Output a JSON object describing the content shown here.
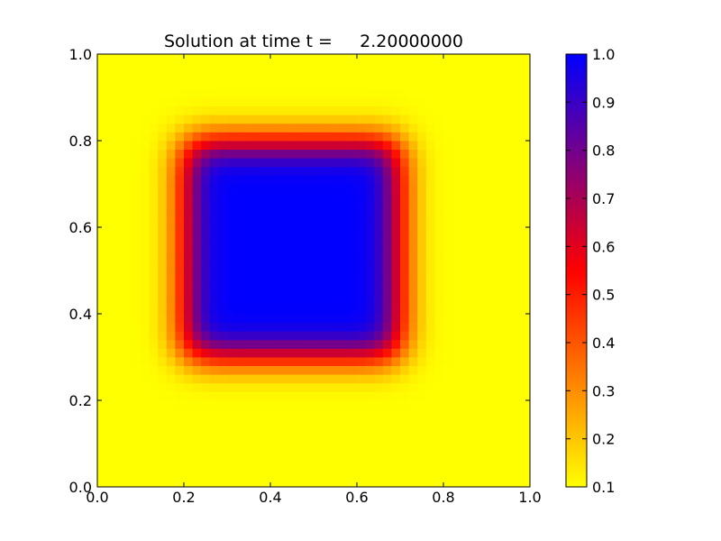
{
  "chart_data": {
    "type": "heatmap",
    "title": "Solution at time t =     2.20000000",
    "xlabel": "",
    "ylabel": "",
    "xlim": [
      0.0,
      1.0
    ],
    "ylim": [
      0.0,
      1.0
    ],
    "x_ticks": [
      "0.0",
      "0.2",
      "0.4",
      "0.6",
      "0.8",
      "1.0"
    ],
    "y_ticks": [
      "0.0",
      "0.2",
      "0.4",
      "0.6",
      "0.8",
      "1.0"
    ],
    "grid_resolution": [
      50,
      50
    ],
    "field": {
      "background_value": 0.1,
      "peak_value": 1.0,
      "square_x": [
        0.2,
        0.7
      ],
      "square_y": [
        0.3,
        0.8
      ],
      "edge_blur": 0.04
    },
    "colorbar": {
      "range": [
        0.1,
        1.0
      ],
      "ticks": [
        "0.1",
        "0.2",
        "0.3",
        "0.4",
        "0.5",
        "0.6",
        "0.7",
        "0.8",
        "0.9",
        "1.0"
      ],
      "colormap": [
        "#ffff00",
        "#ff0000",
        "#0000ff"
      ],
      "placement": "right"
    }
  }
}
